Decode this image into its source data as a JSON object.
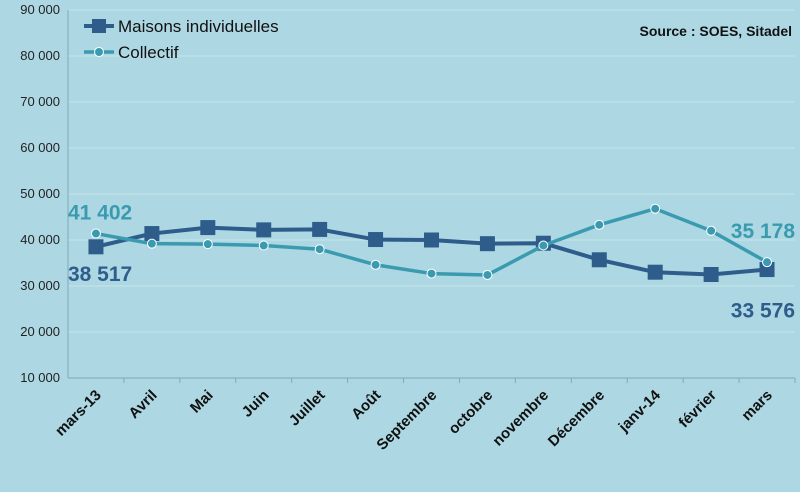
{
  "chart_data": {
    "type": "line",
    "source": "Source : SOES, Sitadel",
    "categories": [
      "mars-13",
      "Avril",
      "Mai",
      "Juin",
      "Juillet",
      "Août",
      "Septembre",
      "octobre",
      "novembre",
      "Décembre",
      "janv-14",
      "février",
      "mars"
    ],
    "ylim": [
      10000,
      90000
    ],
    "yticks": [
      "10 000",
      "20 000",
      "30 000",
      "40 000",
      "50 000",
      "60 000",
      "70 000",
      "80 000",
      "90 000"
    ],
    "ytick_values": [
      10000,
      20000,
      30000,
      40000,
      50000,
      60000,
      70000,
      80000,
      90000
    ],
    "grid": true,
    "legend_position": "top-left",
    "series": [
      {
        "name": "Maisons individuelles",
        "color": "#2e5d8c",
        "marker": "square",
        "values": [
          38517,
          41400,
          42700,
          42200,
          42300,
          40100,
          40000,
          39200,
          39300,
          35700,
          33000,
          32500,
          33576
        ]
      },
      {
        "name": "Collectif",
        "color": "#3a9bb0",
        "marker": "circle",
        "values": [
          41402,
          39200,
          39100,
          38800,
          38000,
          34600,
          32700,
          32400,
          38800,
          43300,
          46800,
          42000,
          35178
        ]
      }
    ],
    "annotations": [
      {
        "text": "41 402",
        "series": 1,
        "index": 0,
        "color": "#3a9bb0"
      },
      {
        "text": "38 517",
        "series": 0,
        "index": 0,
        "color": "#2e5d8c"
      },
      {
        "text": "35 178",
        "series": 1,
        "index": 12,
        "color": "#3a9bb0"
      },
      {
        "text": "33 576",
        "series": 0,
        "index": 12,
        "color": "#2e5d8c"
      }
    ]
  }
}
